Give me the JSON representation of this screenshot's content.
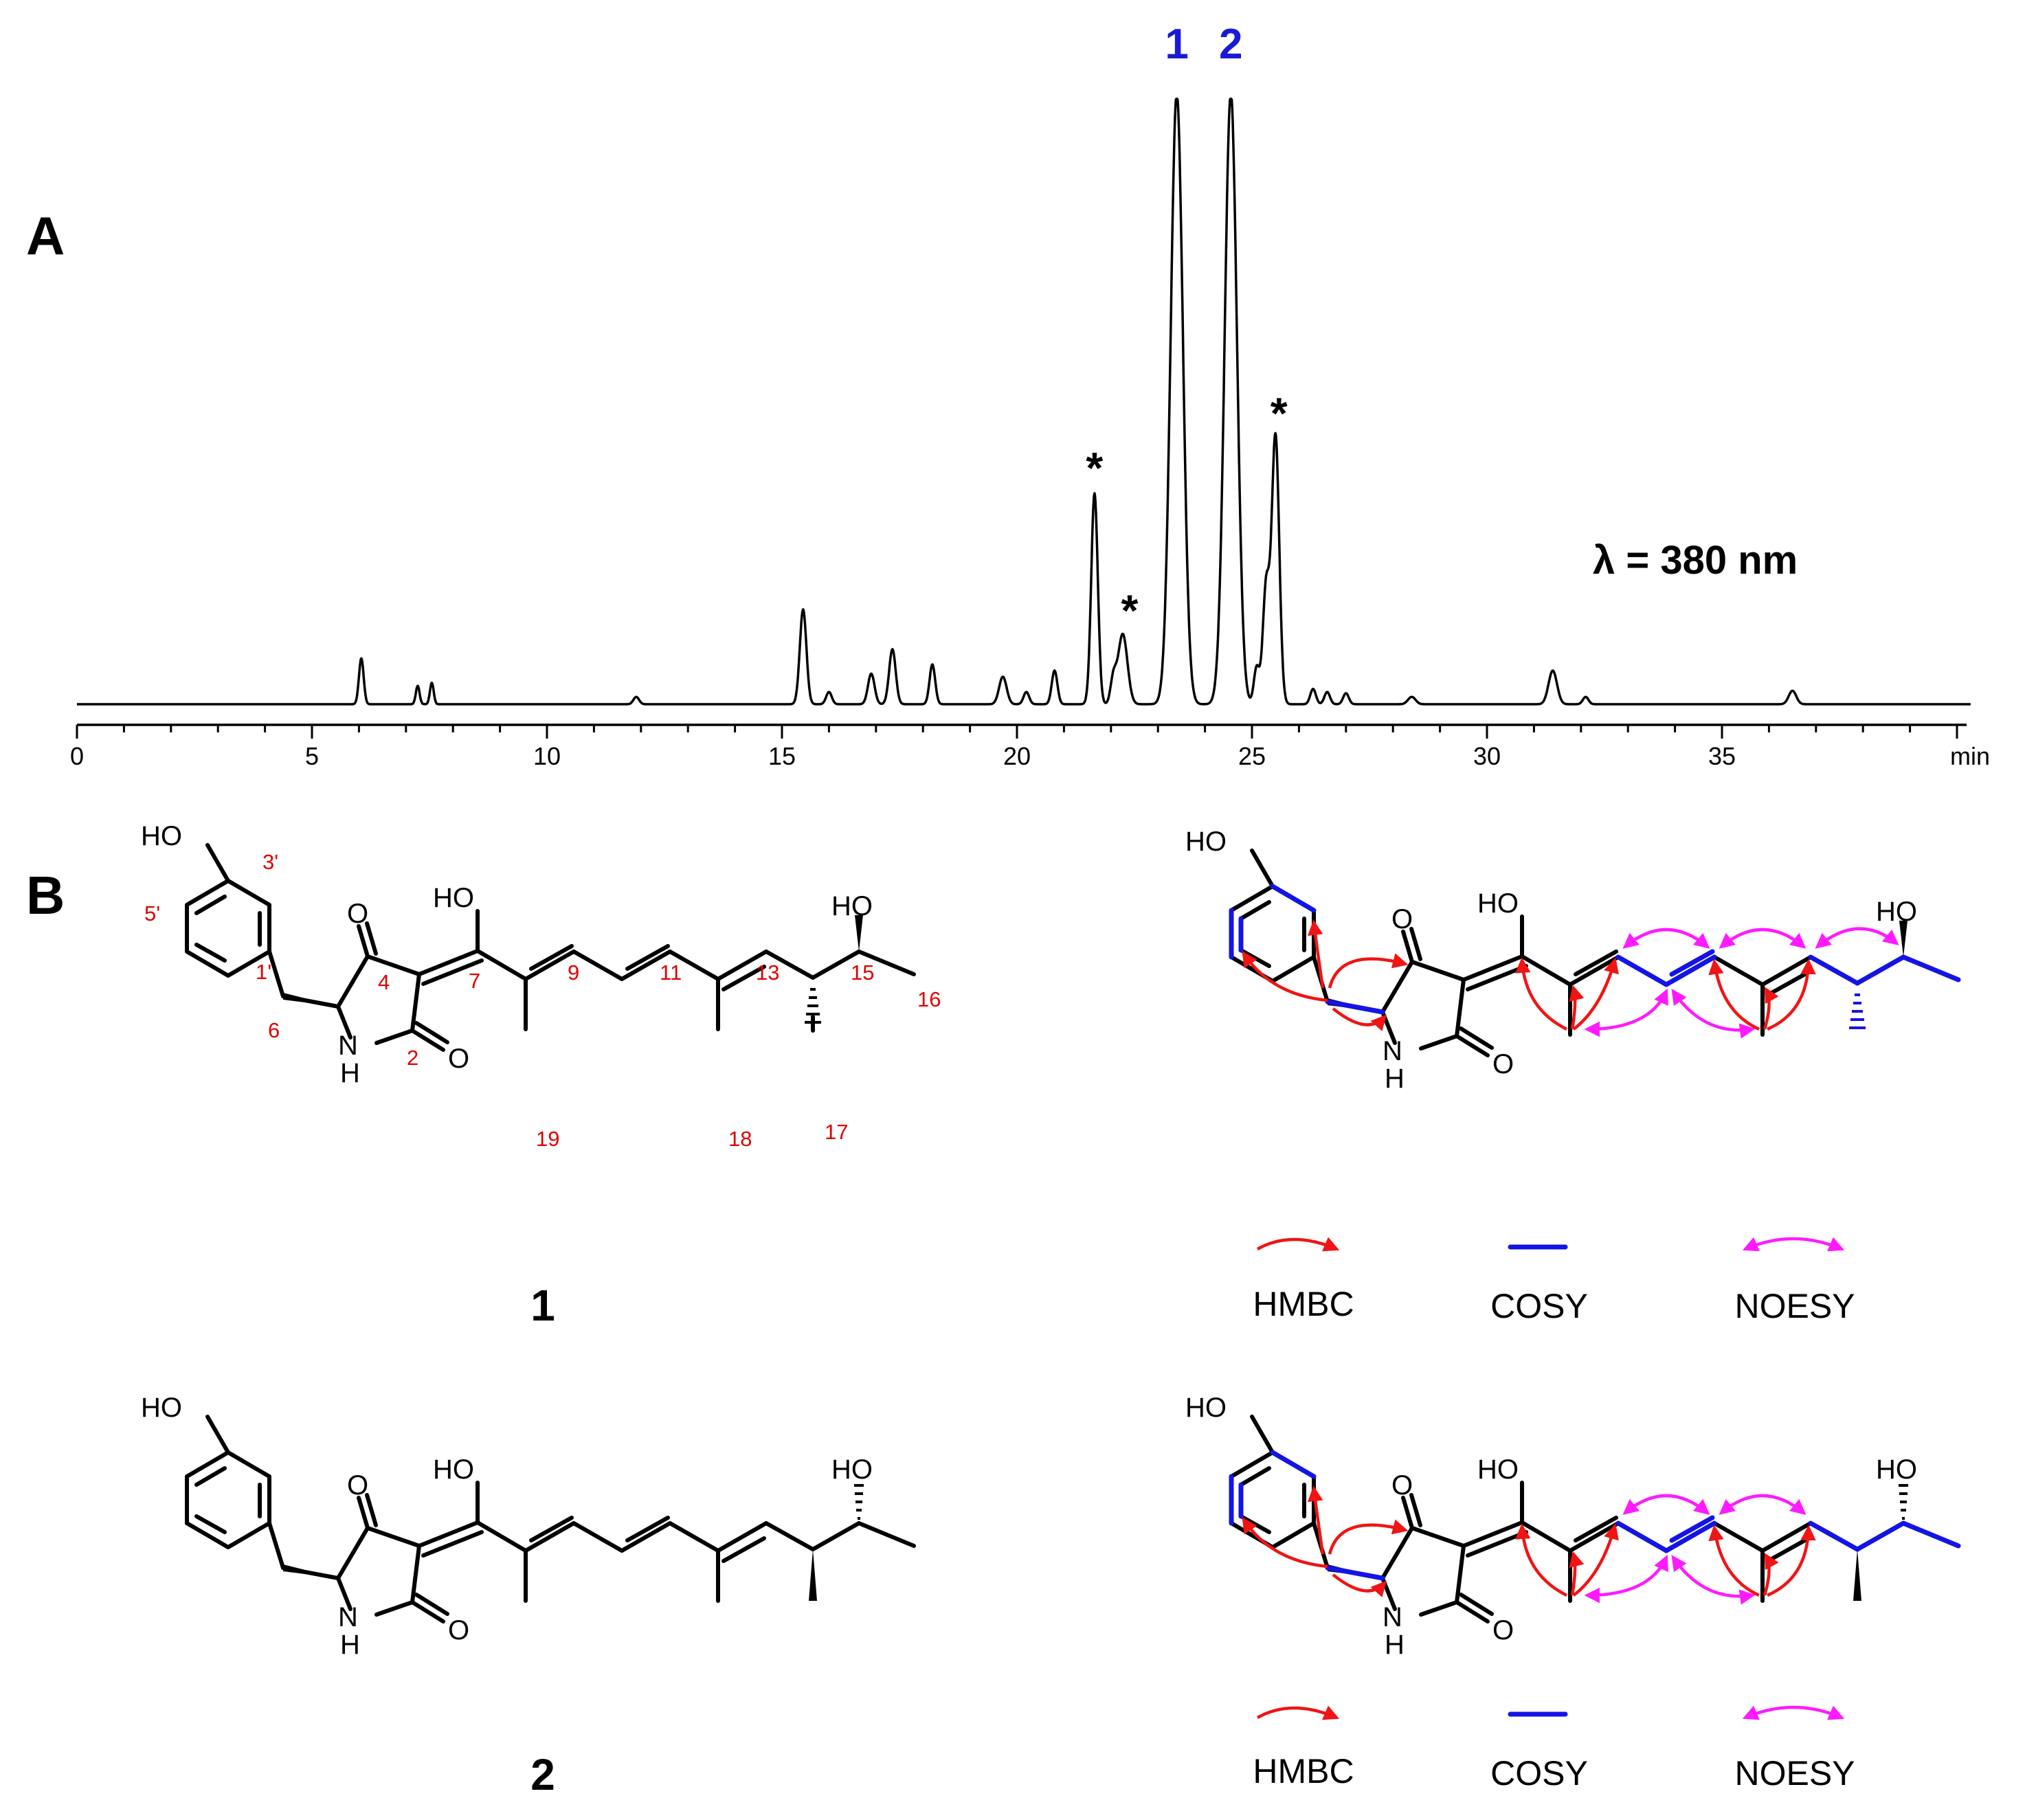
{
  "panel_a": {
    "letter": "A",
    "wavelength_label": "λ = 380 nm",
    "peak_labels": [
      {
        "label": "1",
        "color": "#1a1ad6"
      },
      {
        "label": "2",
        "color": "#1a1ad6"
      }
    ],
    "star": "*",
    "chart_data": {
      "type": "line",
      "title": "",
      "xlabel": "min",
      "ylabel": "",
      "x_ticks": [
        0,
        5,
        10,
        15,
        20,
        25,
        30,
        35
      ],
      "xlim": [
        0,
        40.3
      ],
      "ylim": [
        0,
        1.0
      ],
      "grid": false,
      "peaks": [
        {
          "x": 6.05,
          "y": 0.075,
          "w": 0.05
        },
        {
          "x": 7.25,
          "y": 0.03,
          "w": 0.04
        },
        {
          "x": 7.55,
          "y": 0.035,
          "w": 0.04
        },
        {
          "x": 11.9,
          "y": 0.012,
          "w": 0.06
        },
        {
          "x": 15.45,
          "y": 0.155,
          "w": 0.07
        },
        {
          "x": 16.0,
          "y": 0.02,
          "w": 0.06
        },
        {
          "x": 16.9,
          "y": 0.05,
          "w": 0.07
        },
        {
          "x": 17.35,
          "y": 0.09,
          "w": 0.07
        },
        {
          "x": 18.2,
          "y": 0.065,
          "w": 0.06
        },
        {
          "x": 19.7,
          "y": 0.045,
          "w": 0.08
        },
        {
          "x": 20.2,
          "y": 0.02,
          "w": 0.06
        },
        {
          "x": 20.8,
          "y": 0.055,
          "w": 0.06
        },
        {
          "x": 21.65,
          "y": 0.345,
          "w": 0.07
        },
        {
          "x": 22.05,
          "y": 0.04,
          "w": 0.06
        },
        {
          "x": 22.25,
          "y": 0.115,
          "w": 0.1
        },
        {
          "x": 23.4,
          "y": 1.0,
          "w": 0.13
        },
        {
          "x": 24.55,
          "y": 1.0,
          "w": 0.13
        },
        {
          "x": 25.1,
          "y": 0.06,
          "w": 0.06
        },
        {
          "x": 25.3,
          "y": 0.19,
          "w": 0.07
        },
        {
          "x": 25.5,
          "y": 0.44,
          "w": 0.08
        },
        {
          "x": 26.3,
          "y": 0.025,
          "w": 0.06
        },
        {
          "x": 26.6,
          "y": 0.02,
          "w": 0.06
        },
        {
          "x": 27.0,
          "y": 0.018,
          "w": 0.06
        },
        {
          "x": 28.4,
          "y": 0.012,
          "w": 0.08
        },
        {
          "x": 31.4,
          "y": 0.055,
          "w": 0.09
        },
        {
          "x": 32.1,
          "y": 0.012,
          "w": 0.06
        },
        {
          "x": 36.5,
          "y": 0.022,
          "w": 0.08
        }
      ],
      "annotations": [
        {
          "text": "1",
          "x": 23.4
        },
        {
          "text": "2",
          "x": 24.55
        },
        {
          "text": "*",
          "x": 21.65
        },
        {
          "text": "*",
          "x": 22.25
        },
        {
          "text": "*",
          "x": 25.5
        },
        {
          "text": "λ = 380 nm"
        }
      ]
    }
  },
  "panel_b": {
    "letter": "B",
    "atoms": {
      "oh": "HO",
      "o": "O",
      "nh_n": "N",
      "nh_h": "H"
    },
    "numbering": {
      "c3p": "3'",
      "c5p": "5'",
      "c1p": "1'",
      "c6": "6",
      "c4": "4",
      "c2": "2",
      "c7": "7",
      "c9": "9",
      "c11": "11",
      "c13": "13",
      "c15": "15",
      "c16": "16",
      "c17": "17",
      "c18": "18",
      "c19": "19"
    },
    "compound_1_label": "1",
    "compound_2_label": "2",
    "legend": {
      "hmbc": "HMBC",
      "cosy": "COSY",
      "noesy": "NOESY"
    },
    "colors": {
      "hmbc": "#f01414",
      "cosy": "#1414e6",
      "noesy": "#ff1aff",
      "numbering": "#e00000"
    }
  }
}
